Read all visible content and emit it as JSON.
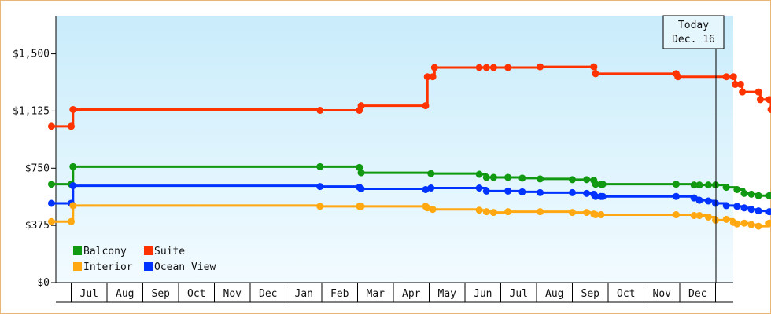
{
  "chart_data": {
    "type": "line",
    "title": "",
    "xlabel": "",
    "ylabel": "",
    "ylim": [
      0,
      1750
    ],
    "y_ticks": [
      {
        "value": 0,
        "label": "$0"
      },
      {
        "value": 375,
        "label": "$375"
      },
      {
        "value": 750,
        "label": "$750"
      },
      {
        "value": 1125,
        "label": "$1,125"
      },
      {
        "value": 1500,
        "label": "$1,500"
      }
    ],
    "x_months": [
      "Jul",
      "Aug",
      "Sep",
      "Oct",
      "Nov",
      "Dec",
      "Jan",
      "Feb",
      "Mar",
      "Apr",
      "May",
      "Jun",
      "Jul",
      "Aug",
      "Sep",
      "Oct",
      "Nov",
      "Dec"
    ],
    "today_marker": {
      "line1": "Today",
      "line2": "Dec. 16",
      "x": 18.0
    },
    "grid": false,
    "legend_placement": "bottom-left",
    "series": [
      {
        "name": "Suite",
        "color": "#ff3300",
        "points": [
          [
            -0.55,
            1025
          ],
          [
            0.0,
            1025
          ],
          [
            0.05,
            1135
          ],
          [
            6.95,
            1130
          ],
          [
            8.05,
            1130
          ],
          [
            8.1,
            1160
          ],
          [
            9.9,
            1160
          ],
          [
            9.95,
            1350
          ],
          [
            10.1,
            1350
          ],
          [
            10.15,
            1410
          ],
          [
            11.4,
            1410
          ],
          [
            11.6,
            1410
          ],
          [
            11.8,
            1410
          ],
          [
            12.2,
            1410
          ],
          [
            13.1,
            1415
          ],
          [
            14.6,
            1415
          ],
          [
            14.65,
            1370
          ],
          [
            16.9,
            1370
          ],
          [
            16.95,
            1350
          ],
          [
            18.3,
            1350
          ],
          [
            18.5,
            1350
          ],
          [
            18.55,
            1300
          ],
          [
            18.7,
            1300
          ],
          [
            18.75,
            1250
          ],
          [
            19.2,
            1250
          ],
          [
            19.25,
            1200
          ],
          [
            19.5,
            1200
          ],
          [
            19.55,
            1135
          ],
          [
            19.8,
            1135
          ]
        ],
        "projection": [
          [
            19.8,
            1135
          ],
          [
            20.8,
            1155
          ]
        ]
      },
      {
        "name": "Balcony",
        "color": "#119911",
        "points": [
          [
            -0.55,
            645
          ],
          [
            0.0,
            645
          ],
          [
            0.05,
            760
          ],
          [
            6.95,
            760
          ],
          [
            8.05,
            755
          ],
          [
            8.1,
            720
          ],
          [
            10.05,
            715
          ],
          [
            11.4,
            710
          ],
          [
            11.6,
            690
          ],
          [
            11.8,
            690
          ],
          [
            12.2,
            690
          ],
          [
            12.6,
            685
          ],
          [
            13.1,
            680
          ],
          [
            14.0,
            675
          ],
          [
            14.4,
            675
          ],
          [
            14.6,
            670
          ],
          [
            14.65,
            645
          ],
          [
            14.8,
            645
          ],
          [
            14.85,
            645
          ],
          [
            16.9,
            645
          ],
          [
            17.4,
            640
          ],
          [
            17.55,
            640
          ],
          [
            17.8,
            640
          ],
          [
            18.0,
            640
          ],
          [
            18.3,
            625
          ],
          [
            18.6,
            610
          ],
          [
            18.8,
            585
          ],
          [
            19.0,
            580
          ],
          [
            19.2,
            570
          ],
          [
            19.5,
            570
          ],
          [
            19.8,
            570
          ]
        ],
        "projection": [
          [
            19.8,
            570
          ],
          [
            20.8,
            555
          ]
        ]
      },
      {
        "name": "Ocean View",
        "color": "#0033ff",
        "points": [
          [
            -0.55,
            520
          ],
          [
            0.0,
            520
          ],
          [
            0.05,
            635
          ],
          [
            6.95,
            630
          ],
          [
            8.05,
            625
          ],
          [
            8.1,
            615
          ],
          [
            9.9,
            610
          ],
          [
            10.05,
            620
          ],
          [
            11.4,
            620
          ],
          [
            11.6,
            600
          ],
          [
            12.2,
            600
          ],
          [
            12.6,
            595
          ],
          [
            13.1,
            590
          ],
          [
            14.0,
            590
          ],
          [
            14.4,
            585
          ],
          [
            14.6,
            580
          ],
          [
            14.65,
            565
          ],
          [
            14.8,
            565
          ],
          [
            14.85,
            565
          ],
          [
            16.9,
            565
          ],
          [
            17.4,
            555
          ],
          [
            17.55,
            540
          ],
          [
            17.8,
            535
          ],
          [
            18.0,
            520
          ],
          [
            18.3,
            505
          ],
          [
            18.6,
            500
          ],
          [
            18.8,
            490
          ],
          [
            19.0,
            480
          ],
          [
            19.2,
            470
          ],
          [
            19.5,
            465
          ],
          [
            19.8,
            465
          ]
        ],
        "projection": [
          [
            19.8,
            465
          ],
          [
            20.8,
            460
          ]
        ]
      },
      {
        "name": "Interior",
        "color": "#ffa811",
        "points": [
          [
            -0.55,
            400
          ],
          [
            0.0,
            400
          ],
          [
            0.05,
            505
          ],
          [
            6.95,
            500
          ],
          [
            8.05,
            500
          ],
          [
            8.1,
            500
          ],
          [
            9.9,
            500
          ],
          [
            9.95,
            490
          ],
          [
            10.1,
            480
          ],
          [
            11.4,
            475
          ],
          [
            11.6,
            465
          ],
          [
            11.8,
            460
          ],
          [
            12.2,
            465
          ],
          [
            13.1,
            465
          ],
          [
            14.0,
            460
          ],
          [
            14.4,
            460
          ],
          [
            14.6,
            450
          ],
          [
            14.65,
            445
          ],
          [
            14.8,
            445
          ],
          [
            16.9,
            445
          ],
          [
            17.4,
            440
          ],
          [
            17.55,
            440
          ],
          [
            17.8,
            430
          ],
          [
            18.0,
            410
          ],
          [
            18.3,
            415
          ],
          [
            18.5,
            395
          ],
          [
            18.6,
            385
          ],
          [
            18.8,
            390
          ],
          [
            19.0,
            380
          ],
          [
            19.2,
            370
          ],
          [
            19.5,
            390
          ],
          [
            19.8,
            395
          ]
        ],
        "projection": [
          [
            19.8,
            395
          ],
          [
            20.8,
            385
          ]
        ]
      }
    ]
  },
  "legend": [
    {
      "label": "Balcony",
      "color": "#119911"
    },
    {
      "label": "Suite",
      "color": "#ff3300"
    },
    {
      "label": "Interior",
      "color": "#ffa811"
    },
    {
      "label": "Ocean View",
      "color": "#0033ff"
    }
  ]
}
